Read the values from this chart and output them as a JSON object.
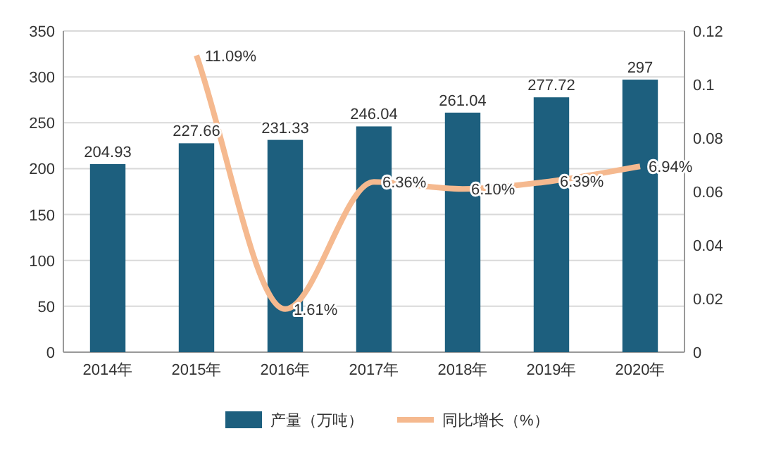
{
  "chart_data": {
    "type": "bar",
    "categories": [
      "2014年",
      "2015年",
      "2016年",
      "2017年",
      "2018年",
      "2019年",
      "2020年"
    ],
    "series": [
      {
        "name": "产量（万吨）",
        "color": "#1d5f7e",
        "values": [
          204.93,
          227.66,
          231.33,
          246.04,
          261.04,
          277.72,
          297
        ],
        "data_labels": true
      },
      {
        "name": "同比增长（%）",
        "type": "line",
        "axis": "y2",
        "color": "#f5b98f",
        "values": [
          null,
          0.1109,
          0.0161,
          0.0636,
          0.061,
          0.0639,
          0.0694
        ],
        "value_labels": [
          null,
          "11.09%",
          "1.61%",
          "6.36%",
          "6.10%",
          "6.39%",
          "6.94%"
        ],
        "marker": "none"
      }
    ],
    "ylim": [
      0,
      350
    ],
    "yticks": [
      0,
      50,
      100,
      150,
      200,
      250,
      300,
      350
    ],
    "y2lim": [
      0,
      0.12
    ],
    "y2ticks": [
      0,
      0.02,
      0.04,
      0.06,
      0.08,
      0.1,
      0.12
    ],
    "grid": "y",
    "legend": "bottom"
  }
}
